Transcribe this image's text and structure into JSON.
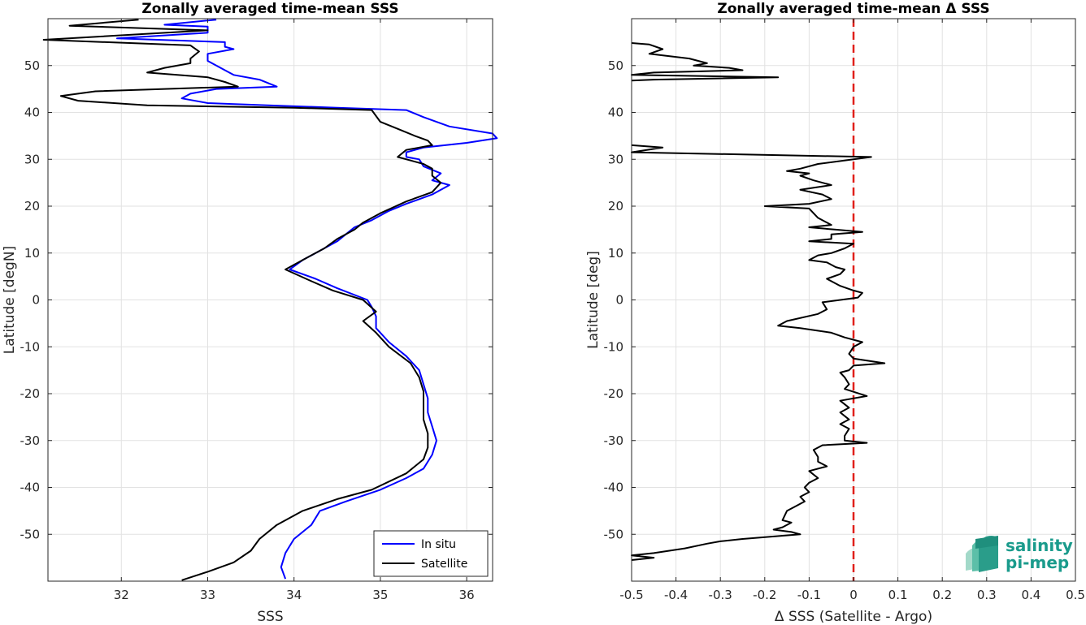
{
  "chart_data": [
    {
      "type": "line",
      "title": "Zonally averaged time-mean SSS",
      "xlabel": "SSS",
      "ylabel": "Latitude [degN]",
      "xlim": [
        31.15,
        36.3
      ],
      "ylim": [
        -60,
        60
      ],
      "xticks": [
        "32",
        "33",
        "34",
        "35",
        "36"
      ],
      "yticks": [
        "50",
        "40",
        "30",
        "20",
        "10",
        "0",
        "-10",
        "-20",
        "-30",
        "-40",
        "-50"
      ],
      "grid": true,
      "legend_position": "bottom-right",
      "colors": {
        "In situ": "#0000ff",
        "Satellite": "#000000"
      },
      "series": [
        {
          "name": "In situ",
          "points": [
            [
              33.1,
              59.8
            ],
            [
              32.5,
              58.7
            ],
            [
              33.0,
              58.3
            ],
            [
              33.0,
              57.0
            ],
            [
              31.95,
              55.8
            ],
            [
              33.2,
              55.0
            ],
            [
              33.2,
              54.0
            ],
            [
              33.3,
              53.5
            ],
            [
              33.0,
              52.5
            ],
            [
              33.0,
              51.0
            ],
            [
              33.1,
              50.0
            ],
            [
              33.2,
              49.0
            ],
            [
              33.3,
              48.0
            ],
            [
              33.6,
              47.0
            ],
            [
              33.8,
              45.5
            ],
            [
              33.1,
              45.0
            ],
            [
              32.8,
              44.0
            ],
            [
              32.7,
              43.0
            ],
            [
              33.0,
              42.0
            ],
            [
              33.7,
              41.5
            ],
            [
              34.5,
              41.0
            ],
            [
              35.3,
              40.5
            ],
            [
              35.5,
              39.0
            ],
            [
              35.8,
              37.0
            ],
            [
              36.3,
              35.5
            ],
            [
              36.35,
              34.5
            ],
            [
              36.0,
              33.5
            ],
            [
              35.5,
              32.5
            ],
            [
              35.3,
              31.5
            ],
            [
              35.3,
              30.5
            ],
            [
              35.45,
              30.0
            ],
            [
              35.5,
              28.5
            ],
            [
              35.7,
              27.0
            ],
            [
              35.6,
              25.5
            ],
            [
              35.8,
              24.5
            ],
            [
              35.6,
              22.5
            ],
            [
              35.3,
              20.5
            ],
            [
              35.1,
              19.0
            ],
            [
              34.9,
              17.0
            ],
            [
              34.7,
              15.5
            ],
            [
              34.6,
              14.0
            ],
            [
              34.5,
              12.5
            ],
            [
              34.3,
              10.5
            ],
            [
              34.1,
              8.5
            ],
            [
              33.95,
              6.5
            ],
            [
              34.25,
              4.5
            ],
            [
              34.5,
              2.5
            ],
            [
              34.85,
              0.0
            ],
            [
              34.9,
              -1.5
            ],
            [
              34.95,
              -3.5
            ],
            [
              34.95,
              -6.0
            ],
            [
              35.1,
              -9.0
            ],
            [
              35.3,
              -12.0
            ],
            [
              35.45,
              -15.0
            ],
            [
              35.5,
              -18.0
            ],
            [
              35.55,
              -21.0
            ],
            [
              35.55,
              -24.0
            ],
            [
              35.6,
              -27.0
            ],
            [
              35.65,
              -30.0
            ],
            [
              35.6,
              -33.0
            ],
            [
              35.5,
              -36.0
            ],
            [
              35.3,
              -38.0
            ],
            [
              35.0,
              -40.5
            ],
            [
              34.6,
              -43.0
            ],
            [
              34.3,
              -45.0
            ],
            [
              34.2,
              -48.0
            ],
            [
              34.0,
              -51.0
            ],
            [
              33.9,
              -54.0
            ],
            [
              33.85,
              -57.0
            ],
            [
              33.9,
              -59.5
            ]
          ]
        },
        {
          "name": "Satellite",
          "points": [
            [
              32.2,
              59.8
            ],
            [
              31.4,
              58.5
            ],
            [
              33.0,
              57.5
            ],
            [
              31.1,
              55.5
            ],
            [
              32.8,
              54.3
            ],
            [
              32.9,
              53.0
            ],
            [
              32.8,
              51.5
            ],
            [
              32.8,
              50.5
            ],
            [
              32.5,
              49.5
            ],
            [
              32.3,
              48.5
            ],
            [
              33.0,
              47.5
            ],
            [
              33.2,
              46.5
            ],
            [
              33.35,
              45.5
            ],
            [
              32.5,
              45.0
            ],
            [
              31.7,
              44.5
            ],
            [
              31.3,
              43.5
            ],
            [
              31.5,
              42.5
            ],
            [
              32.3,
              41.5
            ],
            [
              34.0,
              41.0
            ],
            [
              34.9,
              40.5
            ],
            [
              35.0,
              38.0
            ],
            [
              35.2,
              36.5
            ],
            [
              35.4,
              35.0
            ],
            [
              35.55,
              34.0
            ],
            [
              35.6,
              33.0
            ],
            [
              35.3,
              32.0
            ],
            [
              35.2,
              30.5
            ],
            [
              35.5,
              29.0
            ],
            [
              35.6,
              28.0
            ],
            [
              35.6,
              26.5
            ],
            [
              35.7,
              25.0
            ],
            [
              35.6,
              23.0
            ],
            [
              35.3,
              21.0
            ],
            [
              35.0,
              18.5
            ],
            [
              34.8,
              16.5
            ],
            [
              34.7,
              15.0
            ],
            [
              34.5,
              13.0
            ],
            [
              34.35,
              11.0
            ],
            [
              34.15,
              9.0
            ],
            [
              33.9,
              6.5
            ],
            [
              34.2,
              4.0
            ],
            [
              34.45,
              2.0
            ],
            [
              34.8,
              0.0
            ],
            [
              34.95,
              -2.5
            ],
            [
              34.8,
              -4.5
            ],
            [
              34.95,
              -7.0
            ],
            [
              35.1,
              -10.0
            ],
            [
              35.35,
              -13.5
            ],
            [
              35.45,
              -16.5
            ],
            [
              35.5,
              -19.5
            ],
            [
              35.5,
              -22.5
            ],
            [
              35.5,
              -25.5
            ],
            [
              35.55,
              -28.5
            ],
            [
              35.55,
              -31.5
            ],
            [
              35.5,
              -34.0
            ],
            [
              35.3,
              -37.0
            ],
            [
              34.9,
              -40.5
            ],
            [
              34.5,
              -42.5
            ],
            [
              34.1,
              -45.0
            ],
            [
              33.8,
              -48.0
            ],
            [
              33.6,
              -51.0
            ],
            [
              33.5,
              -53.5
            ],
            [
              33.3,
              -56.0
            ],
            [
              33.0,
              -58.0
            ],
            [
              32.7,
              -59.8
            ]
          ]
        }
      ]
    },
    {
      "type": "line",
      "title": "Zonally averaged time-mean Δ SSS",
      "xlabel": "Δ SSS (Satellite - Argo)",
      "ylabel": "Latitude [deg]",
      "xlim": [
        -0.5,
        0.5
      ],
      "ylim": [
        -60,
        60
      ],
      "xticks": [
        "-0.5",
        "-0.4",
        "-0.3",
        "-0.2",
        "-0.1",
        "0",
        "0.1",
        "0.2",
        "0.3",
        "0.4",
        "0.5"
      ],
      "yticks": [
        "50",
        "40",
        "30",
        "20",
        "10",
        "0",
        "-10",
        "-20",
        "-30",
        "-40",
        "-50"
      ],
      "grid": true,
      "zero_line": {
        "x": 0,
        "color": "#e0201a",
        "style": "dashed"
      },
      "series": [
        {
          "name": "",
          "color": "#000000",
          "segments": [
            [
              [
                -0.5,
                54.8
              ],
              [
                -0.46,
                54.5
              ],
              [
                -0.43,
                53.5
              ],
              [
                -0.46,
                52.5
              ],
              [
                -0.37,
                51.5
              ],
              [
                -0.33,
                50.5
              ],
              [
                -0.36,
                50.0
              ],
              [
                -0.28,
                49.5
              ],
              [
                -0.25,
                49.0
              ],
              [
                -0.45,
                48.5
              ],
              [
                -0.5,
                48.0
              ],
              [
                -0.17,
                47.5
              ],
              [
                -0.45,
                47.0
              ],
              [
                -0.5,
                46.8
              ]
            ],
            [
              [
                -0.5,
                33.0
              ],
              [
                -0.43,
                32.5
              ],
              [
                -0.5,
                31.5
              ],
              [
                0.04,
                30.5
              ],
              [
                -0.08,
                29.0
              ],
              [
                -0.12,
                28.0
              ],
              [
                -0.15,
                27.5
              ],
              [
                -0.1,
                27.0
              ],
              [
                -0.12,
                26.5
              ],
              [
                -0.09,
                25.5
              ],
              [
                -0.05,
                24.5
              ],
              [
                -0.12,
                23.5
              ],
              [
                -0.07,
                22.5
              ],
              [
                -0.05,
                21.5
              ],
              [
                -0.1,
                20.5
              ],
              [
                -0.2,
                20.0
              ],
              [
                -0.1,
                19.5
              ],
              [
                -0.08,
                17.5
              ],
              [
                -0.05,
                16.0
              ],
              [
                -0.1,
                15.5
              ],
              [
                -0.04,
                15.0
              ],
              [
                0.02,
                14.5
              ],
              [
                -0.05,
                14.0
              ],
              [
                -0.05,
                13.0
              ],
              [
                -0.1,
                12.5
              ],
              [
                -0.0,
                12.0
              ],
              [
                -0.02,
                11.0
              ],
              [
                -0.05,
                10.0
              ],
              [
                -0.08,
                9.5
              ],
              [
                -0.1,
                8.5
              ],
              [
                -0.06,
                8.0
              ],
              [
                -0.04,
                7.0
              ],
              [
                -0.02,
                6.5
              ],
              [
                -0.03,
                5.5
              ],
              [
                -0.06,
                4.5
              ],
              [
                -0.03,
                3.0
              ],
              [
                -0.0,
                2.0
              ],
              [
                0.02,
                1.5
              ],
              [
                0.01,
                0.5
              ],
              [
                -0.07,
                -0.5
              ],
              [
                -0.06,
                -2.0
              ],
              [
                -0.08,
                -3.0
              ],
              [
                -0.15,
                -4.5
              ],
              [
                -0.17,
                -5.5
              ],
              [
                -0.12,
                -6.0
              ],
              [
                -0.05,
                -7.0
              ],
              [
                -0.02,
                -8.0
              ],
              [
                0.02,
                -9.0
              ],
              [
                0.0,
                -10.0
              ],
              [
                -0.01,
                -11.5
              ],
              [
                0.0,
                -12.5
              ],
              [
                0.07,
                -13.5
              ],
              [
                -0.0,
                -14.0
              ],
              [
                -0.01,
                -15.0
              ],
              [
                -0.03,
                -15.5
              ],
              [
                -0.02,
                -16.5
              ],
              [
                -0.01,
                -18.0
              ],
              [
                -0.02,
                -19.0
              ],
              [
                0.03,
                -20.5
              ],
              [
                -0.03,
                -21.5
              ],
              [
                -0.01,
                -23.0
              ],
              [
                -0.03,
                -24.0
              ],
              [
                -0.01,
                -25.5
              ],
              [
                -0.03,
                -26.5
              ],
              [
                -0.01,
                -27.5
              ],
              [
                -0.02,
                -29.0
              ],
              [
                -0.02,
                -30.0
              ],
              [
                0.03,
                -30.5
              ],
              [
                -0.07,
                -31.0
              ],
              [
                -0.09,
                -32.0
              ],
              [
                -0.08,
                -33.5
              ],
              [
                -0.08,
                -34.5
              ],
              [
                -0.06,
                -35.5
              ],
              [
                -0.1,
                -36.5
              ],
              [
                -0.08,
                -38.0
              ],
              [
                -0.1,
                -39.0
              ],
              [
                -0.11,
                -40.0
              ],
              [
                -0.1,
                -41.0
              ],
              [
                -0.12,
                -42.0
              ],
              [
                -0.11,
                -43.0
              ],
              [
                -0.13,
                -44.0
              ],
              [
                -0.15,
                -45.0
              ],
              [
                -0.16,
                -47.0
              ],
              [
                -0.14,
                -47.5
              ],
              [
                -0.16,
                -48.5
              ],
              [
                -0.18,
                -49.0
              ],
              [
                -0.14,
                -49.5
              ],
              [
                -0.12,
                -50.0
              ],
              [
                -0.25,
                -51.0
              ],
              [
                -0.3,
                -51.5
              ],
              [
                -0.33,
                -52.0
              ],
              [
                -0.38,
                -53.0
              ],
              [
                -0.45,
                -54.0
              ],
              [
                -0.5,
                -54.5
              ],
              [
                -0.45,
                -55.0
              ],
              [
                -0.5,
                -55.5
              ]
            ]
          ]
        }
      ]
    }
  ],
  "logo": {
    "line1": "salinity",
    "line2": "pi-mep"
  }
}
